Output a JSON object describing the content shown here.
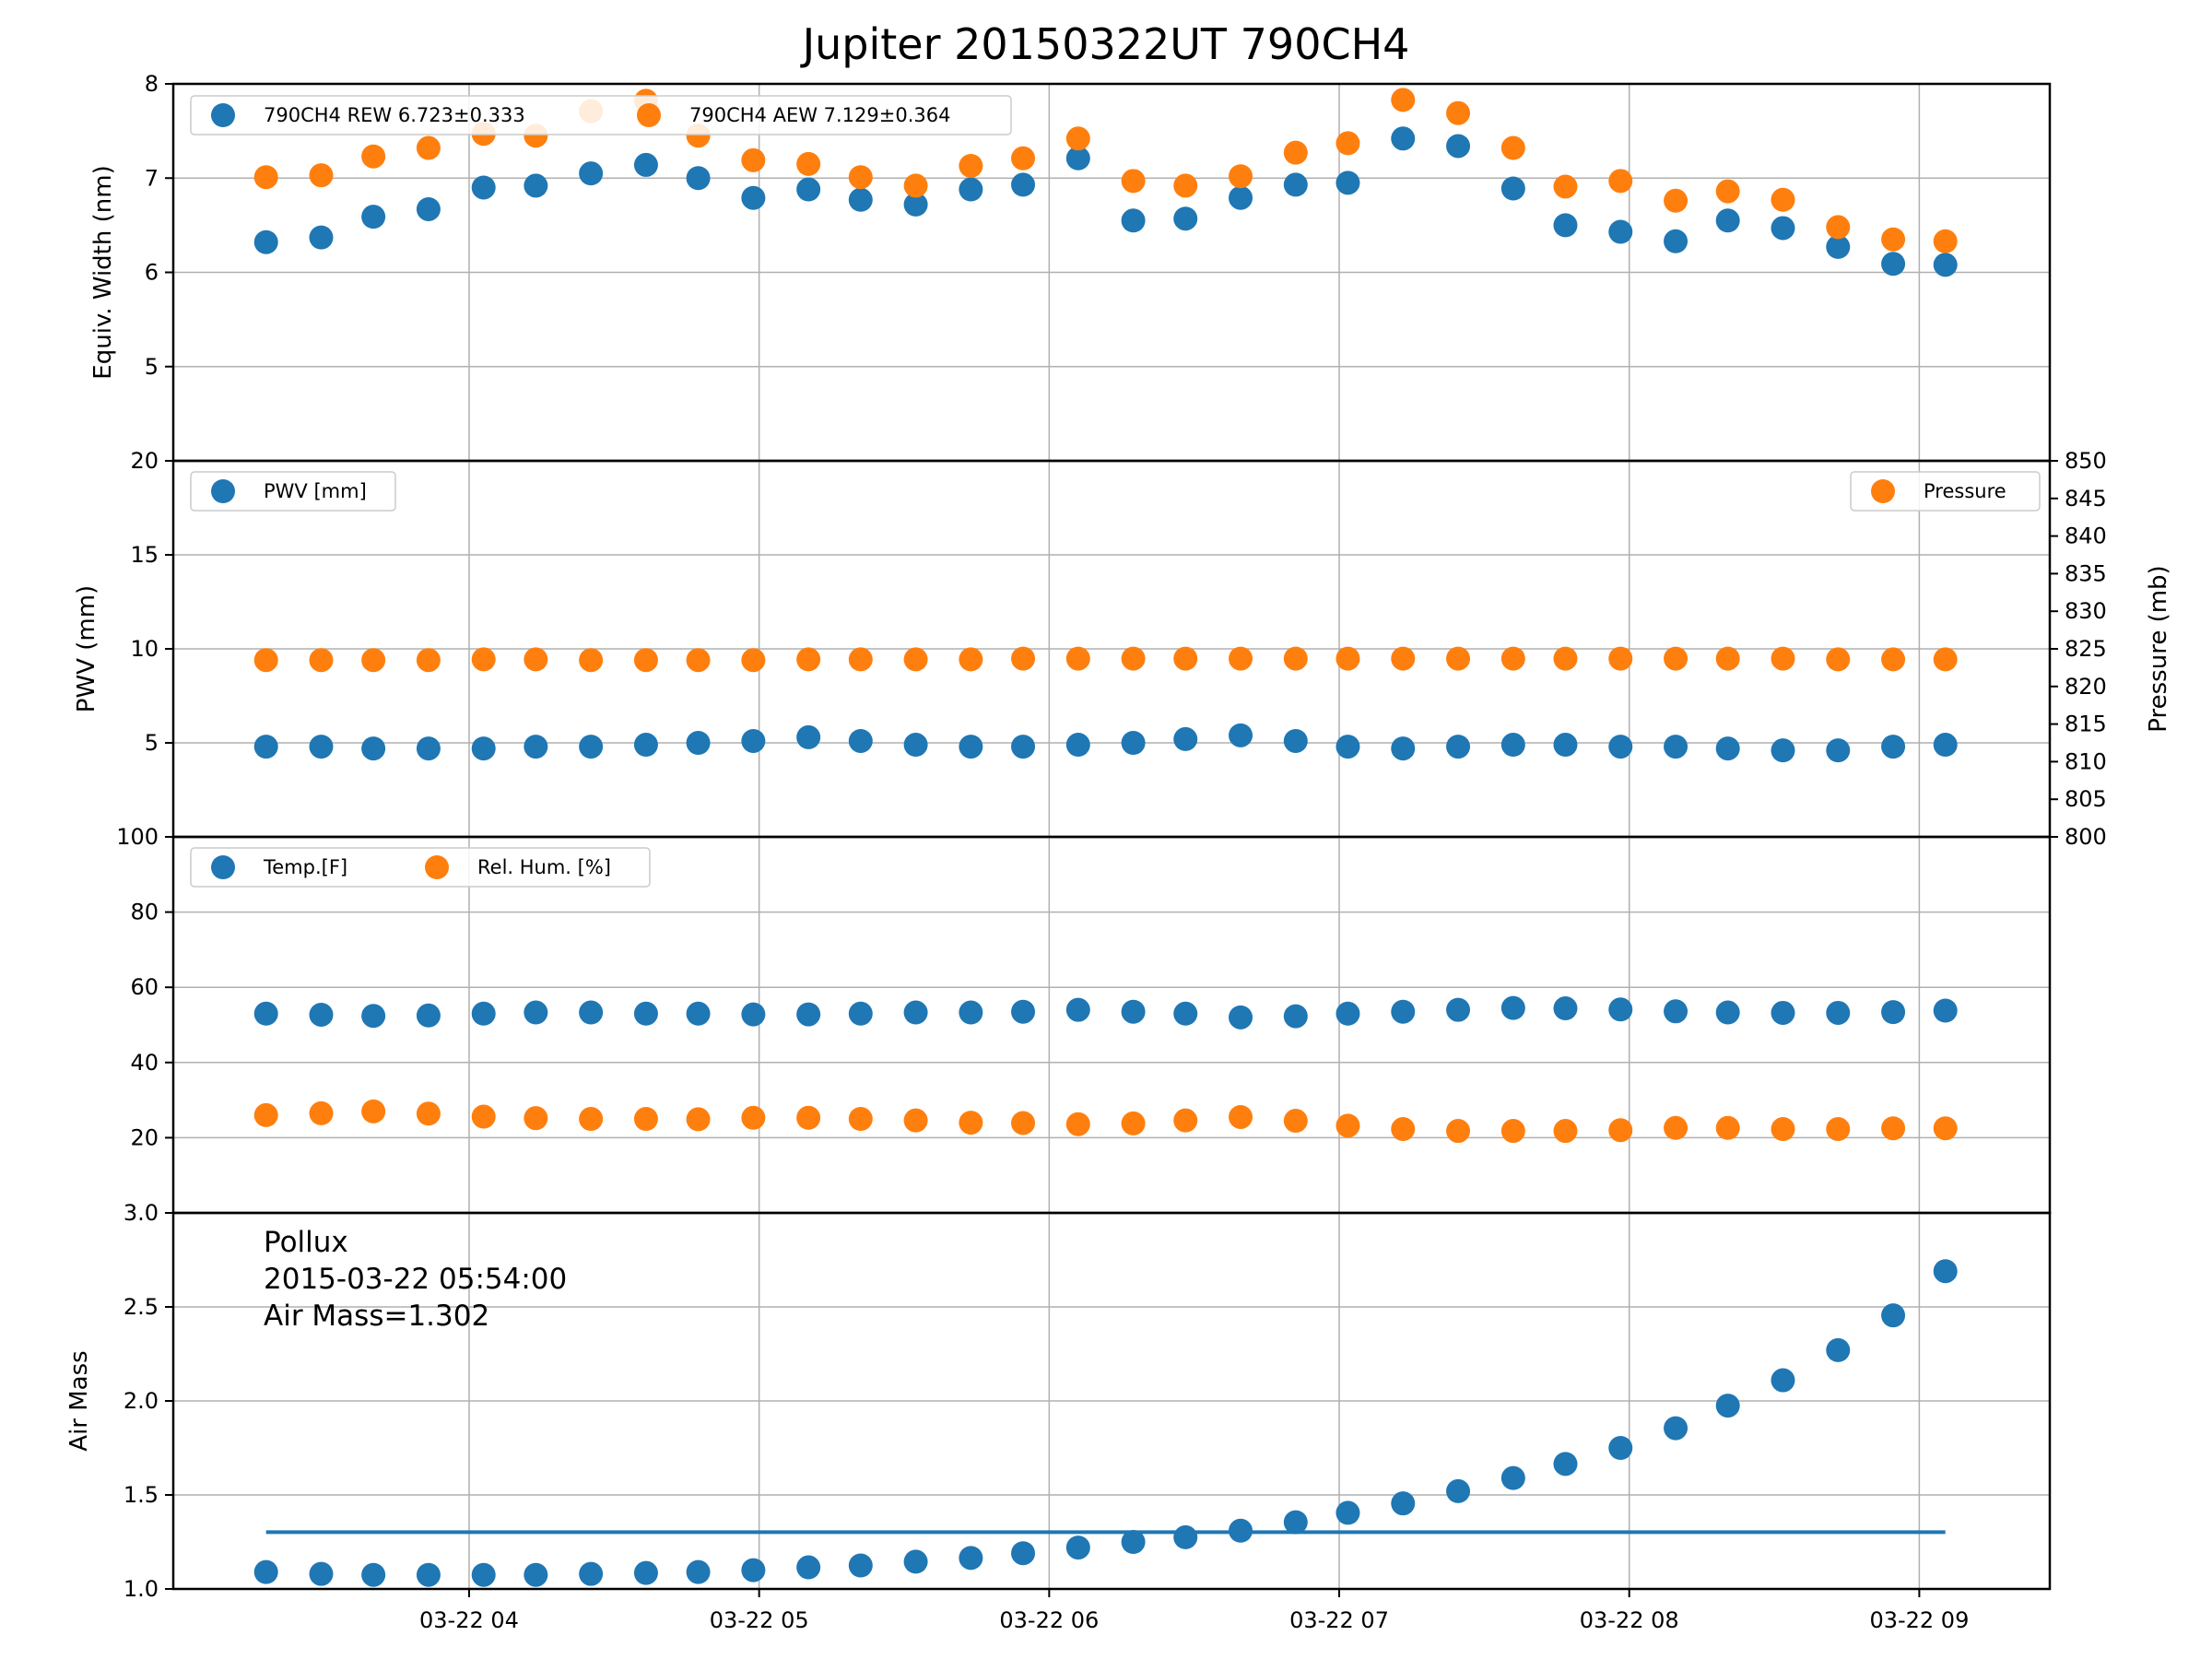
{
  "title": "Jupiter 20150322UT 790CH4",
  "colors": {
    "blue": "#1f77b4",
    "orange": "#ff7f0e",
    "grid": "#b0b0b0",
    "frame": "#000000"
  },
  "x_axis": {
    "tick_labels": [
      "03-22 04",
      "03-22 05",
      "03-22 06",
      "03-22 07",
      "03-22 08",
      "03-22 09"
    ],
    "tick_hours": [
      4,
      5,
      6,
      7,
      8,
      9
    ],
    "range_hours": [
      2.98,
      9.45
    ]
  },
  "chart_data": [
    {
      "type": "scatter",
      "panel": "equivalent-width",
      "ylabel": "Equiv. Width (nm)",
      "ylim": [
        4,
        8
      ],
      "yticks": [
        4,
        5,
        6,
        7,
        8
      ],
      "ytick_labels": [
        "",
        "5",
        "6",
        "7",
        "8"
      ],
      "grid": true,
      "legend_position": "upper-left",
      "legend_columns": 2,
      "x": [
        3.3,
        3.49,
        3.67,
        3.86,
        4.05,
        4.23,
        4.42,
        4.61,
        4.79,
        4.98,
        5.17,
        5.35,
        5.54,
        5.73,
        5.91,
        6.1,
        6.29,
        6.47,
        6.66,
        6.85,
        7.03,
        7.22,
        7.41,
        7.6,
        7.78,
        7.97,
        8.16,
        8.34,
        8.53,
        8.72,
        8.91,
        9.09
      ],
      "series": [
        {
          "name": "790CH4 REW 6.723±0.333",
          "color": "blue",
          "axis": "left",
          "values": [
            6.32,
            6.37,
            6.59,
            6.67,
            6.9,
            6.92,
            7.05,
            7.14,
            7.0,
            6.79,
            6.88,
            6.77,
            6.72,
            6.88,
            6.93,
            7.21,
            6.55,
            6.57,
            6.79,
            6.93,
            6.95,
            7.42,
            7.34,
            6.89,
            6.5,
            6.43,
            6.33,
            6.55,
            6.47,
            6.27,
            6.09,
            6.08
          ]
        },
        {
          "name": "790CH4 AEW 7.129±0.364",
          "color": "orange",
          "axis": "left",
          "values": [
            7.01,
            7.03,
            7.23,
            7.32,
            7.47,
            7.45,
            7.71,
            7.82,
            7.45,
            7.19,
            7.15,
            7.01,
            6.92,
            7.13,
            7.21,
            7.42,
            6.97,
            6.92,
            7.02,
            7.27,
            7.37,
            7.83,
            7.69,
            7.32,
            6.91,
            6.97,
            6.76,
            6.86,
            6.77,
            6.48,
            6.35,
            6.33
          ]
        }
      ]
    },
    {
      "type": "scatter",
      "panel": "pwv-pressure",
      "ylabel": "PWV (mm)",
      "ylim": [
        0,
        20
      ],
      "yticks": [
        0,
        5,
        10,
        15,
        20
      ],
      "ytick_labels": [
        "",
        "5",
        "10",
        "15",
        "20"
      ],
      "y2label": "Pressure (mb)",
      "y2lim": [
        800,
        850
      ],
      "y2ticks": [
        800,
        805,
        810,
        815,
        820,
        825,
        830,
        835,
        840,
        845,
        850
      ],
      "y2tick_labels": [
        "800",
        "805",
        "810",
        "815",
        "820",
        "825",
        "830",
        "835",
        "840",
        "845",
        "850"
      ],
      "grid": true,
      "legend_position": "upper-left and upper-right",
      "x": [
        3.3,
        3.49,
        3.67,
        3.86,
        4.05,
        4.23,
        4.42,
        4.61,
        4.79,
        4.98,
        5.17,
        5.35,
        5.54,
        5.73,
        5.91,
        6.1,
        6.29,
        6.47,
        6.66,
        6.85,
        7.03,
        7.22,
        7.41,
        7.6,
        7.78,
        7.97,
        8.16,
        8.34,
        8.53,
        8.72,
        8.91,
        9.09
      ],
      "series": [
        {
          "name": "PWV [mm]",
          "color": "blue",
          "axis": "left",
          "values": [
            4.8,
            4.8,
            4.7,
            4.7,
            4.7,
            4.8,
            4.8,
            4.9,
            5.0,
            5.1,
            5.3,
            5.1,
            4.9,
            4.8,
            4.8,
            4.9,
            5.0,
            5.2,
            5.4,
            5.1,
            4.8,
            4.7,
            4.8,
            4.9,
            4.9,
            4.8,
            4.8,
            4.7,
            4.6,
            4.6,
            4.8,
            4.9
          ]
        },
        {
          "name": "Pressure",
          "color": "orange",
          "axis": "right",
          "values": [
            823.5,
            823.5,
            823.5,
            823.5,
            823.6,
            823.6,
            823.5,
            823.5,
            823.5,
            823.5,
            823.6,
            823.6,
            823.6,
            823.6,
            823.7,
            823.7,
            823.7,
            823.7,
            823.7,
            823.7,
            823.7,
            823.7,
            823.7,
            823.7,
            823.7,
            823.7,
            823.7,
            823.7,
            823.7,
            823.6,
            823.6,
            823.6
          ]
        }
      ]
    },
    {
      "type": "scatter",
      "panel": "temperature-humidity",
      "ylabel": "",
      "ylim": [
        0,
        100
      ],
      "yticks": [
        0,
        20,
        40,
        60,
        80,
        100
      ],
      "ytick_labels": [
        "",
        "20",
        "40",
        "60",
        "80",
        "100"
      ],
      "grid": true,
      "legend_position": "upper-left",
      "legend_columns": 2,
      "x": [
        3.3,
        3.49,
        3.67,
        3.86,
        4.05,
        4.23,
        4.42,
        4.61,
        4.79,
        4.98,
        5.17,
        5.35,
        5.54,
        5.73,
        5.91,
        6.1,
        6.29,
        6.47,
        6.66,
        6.85,
        7.03,
        7.22,
        7.41,
        7.6,
        7.78,
        7.97,
        8.16,
        8.34,
        8.53,
        8.72,
        8.91,
        9.09
      ],
      "series": [
        {
          "name": "Temp.[F]",
          "color": "blue",
          "axis": "left",
          "values": [
            53,
            52.7,
            52.4,
            52.5,
            53,
            53.3,
            53.3,
            53,
            53,
            52.8,
            52.8,
            53,
            53.3,
            53.3,
            53.5,
            54,
            53.5,
            53,
            52,
            52.3,
            53,
            53.5,
            54,
            54.5,
            54.4,
            54.1,
            53.6,
            53.3,
            53.2,
            53.2,
            53.4,
            53.8
          ]
        },
        {
          "name": "Rel. Hum. [%]",
          "color": "orange",
          "axis": "left",
          "values": [
            26,
            26.5,
            27,
            26.4,
            25.6,
            25.2,
            25,
            25,
            24.9,
            25.3,
            25.3,
            25,
            24.6,
            24,
            23.9,
            23.6,
            23.8,
            24.6,
            25.5,
            24.5,
            23.2,
            22.3,
            21.8,
            21.8,
            21.8,
            22,
            22.6,
            22.6,
            22.3,
            22.3,
            22.5,
            22.5
          ]
        }
      ]
    },
    {
      "type": "scatter",
      "panel": "air-mass",
      "ylabel": "Air Mass",
      "ylim": [
        1.0,
        3.0
      ],
      "yticks": [
        1.0,
        1.5,
        2.0,
        2.5,
        3.0
      ],
      "ytick_labels": [
        "1.0",
        "1.5",
        "2.0",
        "2.5",
        "3.0"
      ],
      "grid": true,
      "annotation": {
        "lines": [
          "Pollux",
          "2015-03-22 05:54:00",
          "Air Mass=1.302"
        ]
      },
      "reference_line": {
        "value": 1.302,
        "x_start": 3.3,
        "x_end": 9.09,
        "color": "blue"
      },
      "x": [
        3.3,
        3.49,
        3.67,
        3.86,
        4.05,
        4.23,
        4.42,
        4.61,
        4.79,
        4.98,
        5.17,
        5.35,
        5.54,
        5.73,
        5.91,
        6.1,
        6.29,
        6.47,
        6.66,
        6.85,
        7.03,
        7.22,
        7.41,
        7.6,
        7.78,
        7.97,
        8.16,
        8.34,
        8.53,
        8.72,
        8.91,
        9.09
      ],
      "series": [
        {
          "name": "",
          "color": "blue",
          "axis": "left",
          "values": [
            1.09,
            1.08,
            1.075,
            1.075,
            1.075,
            1.075,
            1.08,
            1.085,
            1.09,
            1.1,
            1.115,
            1.125,
            1.145,
            1.165,
            1.19,
            1.22,
            1.25,
            1.275,
            1.31,
            1.355,
            1.405,
            1.455,
            1.52,
            1.59,
            1.665,
            1.75,
            1.855,
            1.975,
            2.11,
            2.27,
            2.455,
            2.69
          ]
        }
      ]
    }
  ]
}
